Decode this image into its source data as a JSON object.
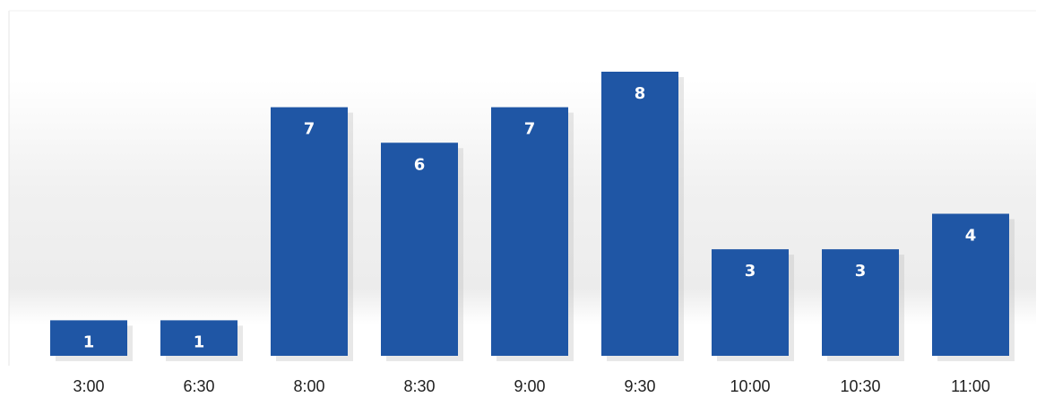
{
  "chart_data": {
    "type": "bar",
    "title": "",
    "xlabel": "",
    "ylabel": "",
    "categories": [
      "3:00",
      "6:30",
      "8:00",
      "8:30",
      "9:00",
      "9:30",
      "10:00",
      "10:30",
      "11:00"
    ],
    "values": [
      1,
      1,
      7,
      6,
      7,
      8,
      3,
      3,
      4
    ],
    "ylim": [
      0,
      8
    ],
    "grid": false,
    "legend": "none",
    "data_labels": "inside-top",
    "bar_color": "#1f56a5",
    "label_color": "#ffffff"
  }
}
